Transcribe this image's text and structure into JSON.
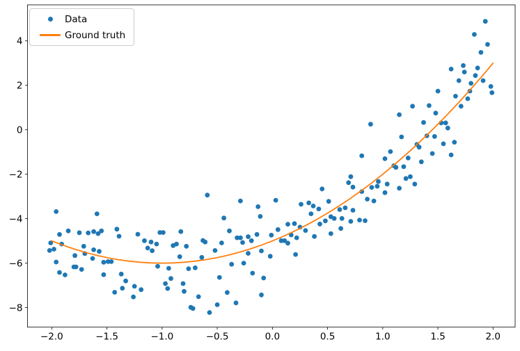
{
  "chart_data": {
    "type": "scatter",
    "title": "",
    "xlabel": "",
    "ylabel": "",
    "grid": false,
    "xlim": [
      -2.22,
      2.2
    ],
    "ylim": [
      -8.88,
      5.62
    ],
    "xticks": {
      "values": [
        -2.0,
        -1.5,
        -1.0,
        -0.5,
        0.0,
        0.5,
        1.0,
        1.5,
        2.0
      ],
      "labels": [
        "−2.0",
        "−1.5",
        "−1.0",
        "−0.5",
        "0.0",
        "0.5",
        "1.0",
        "1.5",
        "2.0"
      ]
    },
    "yticks": {
      "values": [
        -8,
        -6,
        -4,
        -2,
        0,
        2,
        4
      ],
      "labels": [
        "−8",
        "−6",
        "−4",
        "−2",
        "0",
        "2",
        "4"
      ]
    },
    "legend": {
      "position": "upper left",
      "entries": [
        {
          "label": "Data",
          "marker": "dot",
          "color": "#1f77b4"
        },
        {
          "label": "Ground truth",
          "marker": "line",
          "color": "#ff7f0e"
        }
      ]
    },
    "series": [
      {
        "name": "Data",
        "type": "scatter",
        "color": "#1f77b4",
        "marker_radius": 3.4,
        "points": [
          [
            1.93,
            4.88
          ],
          [
            1.83,
            4.29
          ],
          [
            1.95,
            3.84
          ],
          [
            1.89,
            3.48
          ],
          [
            1.73,
            2.89
          ],
          [
            1.62,
            2.73
          ],
          [
            1.74,
            2.6
          ],
          [
            1.86,
            2.78
          ],
          [
            1.84,
            2.44
          ],
          [
            1.69,
            2.21
          ],
          [
            1.91,
            2.21
          ],
          [
            1.8,
            2.09
          ],
          [
            1.98,
            1.95
          ],
          [
            1.99,
            1.67
          ],
          [
            1.79,
            1.74
          ],
          [
            1.5,
            1.74
          ],
          [
            1.66,
            1.51
          ],
          [
            1.77,
            1.4
          ],
          [
            1.27,
            1.06
          ],
          [
            1.42,
            1.09
          ],
          [
            1.71,
            1.06
          ],
          [
            1.48,
            0.75
          ],
          [
            1.15,
            0.68
          ],
          [
            1.37,
            0.33
          ],
          [
            1.53,
            0.31
          ],
          [
            1.57,
            0.31
          ],
          [
            1.59,
            0.08
          ],
          [
            1.4,
            -0.27
          ],
          [
            1.47,
            -0.3
          ],
          [
            1.17,
            -0.32
          ],
          [
            1.31,
            -0.66
          ],
          [
            1.33,
            -0.78
          ],
          [
            1.55,
            -0.63
          ],
          [
            1.65,
            -0.56
          ],
          [
            1.45,
            -1.07
          ],
          [
            1.62,
            -1.13
          ],
          [
            1.23,
            -1.27
          ],
          [
            1.35,
            -1.44
          ],
          [
            1.12,
            -1.69
          ],
          [
            1.19,
            -1.66
          ],
          [
            1.21,
            -2.19
          ],
          [
            1.25,
            -2.11
          ],
          [
            1.29,
            -2.44
          ],
          [
            1.15,
            -2.63
          ],
          [
            0.89,
            0.25
          ],
          [
            0.81,
            -1.17
          ],
          [
            1.07,
            -0.98
          ],
          [
            1.02,
            -1.3
          ],
          [
            1.1,
            -1.62
          ],
          [
            0.71,
            -2.11
          ],
          [
            0.69,
            -2.38
          ],
          [
            0.73,
            -2.58
          ],
          [
            0.81,
            -2.78
          ],
          [
            0.9,
            -2.59
          ],
          [
            0.95,
            -2.54
          ],
          [
            0.96,
            -2.33
          ],
          [
            1.04,
            -2.44
          ],
          [
            1.02,
            -2.83
          ],
          [
            0.86,
            -3.12
          ],
          [
            0.92,
            -3.2
          ],
          [
            0.45,
            -2.66
          ],
          [
            0.51,
            -3.22
          ],
          [
            0.26,
            -3.35
          ],
          [
            0.33,
            -3.29
          ],
          [
            0.37,
            -3.43
          ],
          [
            0.42,
            -3.56
          ],
          [
            0.35,
            -3.78
          ],
          [
            0.48,
            -4.1
          ],
          [
            0.53,
            -3.91
          ],
          [
            0.56,
            -3.99
          ],
          [
            0.61,
            -3.59
          ],
          [
            0.66,
            -3.51
          ],
          [
            0.73,
            -3.62
          ],
          [
            0.63,
            -3.99
          ],
          [
            0.71,
            -4.12
          ],
          [
            0.03,
            -3.17
          ],
          [
            0.05,
            -4.49
          ],
          [
            0.14,
            -4.25
          ],
          [
            0.2,
            -4.22
          ],
          [
            0.25,
            -4.38
          ],
          [
            0.3,
            -4.53
          ],
          [
            0.08,
            -4.99
          ],
          [
            0.11,
            -4.99
          ],
          [
            0.14,
            -5.1
          ],
          [
            0.17,
            -4.73
          ],
          [
            0.22,
            -4.86
          ],
          [
            0.43,
            -4.24
          ],
          [
            0.53,
            -4.67
          ],
          [
            0.38,
            -4.8
          ],
          [
            0.62,
            -4.44
          ],
          [
            0.21,
            -5.61
          ],
          [
            0.79,
            -4.06
          ],
          [
            0.84,
            -4.09
          ],
          [
            -1.02,
            -4.62
          ],
          [
            -0.99,
            -4.62
          ],
          [
            -0.83,
            -4.58
          ],
          [
            -1.1,
            -5.05
          ],
          [
            -1.05,
            -5.14
          ],
          [
            -0.9,
            -5.21
          ],
          [
            -0.87,
            -5.14
          ],
          [
            -0.78,
            -5.24
          ],
          [
            -1.09,
            -5.44
          ],
          [
            -0.84,
            -5.71
          ],
          [
            -1.04,
            -6.14
          ],
          [
            -0.94,
            -6.23
          ],
          [
            -0.63,
            -4.98
          ],
          [
            -0.61,
            -5.05
          ],
          [
            -0.64,
            -5.74
          ],
          [
            -0.76,
            -6.25
          ],
          [
            -0.7,
            -6.21
          ],
          [
            -0.92,
            -6.69
          ],
          [
            -0.97,
            -6.92
          ],
          [
            -0.95,
            -7.14
          ],
          [
            -0.81,
            -6.92
          ],
          [
            -0.8,
            -7.27
          ],
          [
            -0.67,
            -7.51
          ],
          [
            -0.74,
            -7.99
          ],
          [
            -0.72,
            -8.04
          ],
          [
            -0.57,
            -8.22
          ],
          [
            -0.5,
            -7.87
          ],
          [
            -0.52,
            -5.43
          ],
          [
            -0.46,
            -5.09
          ],
          [
            -0.39,
            -4.55
          ],
          [
            -0.32,
            -4.86
          ],
          [
            -0.29,
            -4.86
          ],
          [
            -0.27,
            -5.07
          ],
          [
            -0.22,
            -4.81
          ],
          [
            -0.19,
            -4.99
          ],
          [
            -0.14,
            -4.71
          ],
          [
            -0.01,
            -4.74
          ],
          [
            -0.37,
            -6.05
          ],
          [
            -0.26,
            -6.0
          ],
          [
            -0.22,
            -5.56
          ],
          [
            -0.1,
            -5.45
          ],
          [
            -0.02,
            -5.69
          ],
          [
            -0.18,
            -6.45
          ],
          [
            -0.48,
            -6.64
          ],
          [
            -0.41,
            -7.32
          ],
          [
            -0.33,
            -7.79
          ],
          [
            -0.1,
            -7.43
          ],
          [
            -0.08,
            -6.67
          ],
          [
            -1.85,
            -4.55
          ],
          [
            -1.93,
            -4.71
          ],
          [
            -1.75,
            -4.63
          ],
          [
            -1.67,
            -4.64
          ],
          [
            -1.62,
            -4.58
          ],
          [
            -1.58,
            -4.67
          ],
          [
            -1.55,
            -4.55
          ],
          [
            -1.41,
            -4.47
          ],
          [
            -1.39,
            -4.79
          ],
          [
            -1.22,
            -4.7
          ],
          [
            -1.16,
            -4.99
          ],
          [
            -1.13,
            -5.32
          ],
          [
            -2.01,
            -5.09
          ],
          [
            -1.98,
            -5.37
          ],
          [
            -2.02,
            -5.43
          ],
          [
            -1.91,
            -5.14
          ],
          [
            -1.71,
            -5.24
          ],
          [
            -1.62,
            -5.4
          ],
          [
            -1.57,
            -5.47
          ],
          [
            -1.7,
            -5.57
          ],
          [
            -1.79,
            -5.66
          ],
          [
            -1.53,
            -5.96
          ],
          [
            -1.49,
            -5.93
          ],
          [
            -1.46,
            -5.93
          ],
          [
            -1.63,
            -5.79
          ],
          [
            -1.96,
            -5.95
          ],
          [
            -1.8,
            -6.17
          ],
          [
            -1.78,
            -6.17
          ],
          [
            -1.73,
            -6.28
          ],
          [
            -1.88,
            -6.53
          ],
          [
            -1.53,
            -6.52
          ],
          [
            -1.37,
            -6.49
          ],
          [
            -1.33,
            -6.8
          ],
          [
            -1.43,
            -7.31
          ],
          [
            -1.36,
            -7.13
          ],
          [
            -1.26,
            -7.52
          ],
          [
            -1.25,
            -7.04
          ],
          [
            -1.19,
            -7.19
          ],
          [
            -1.93,
            -6.42
          ],
          [
            -1.96,
            -3.68
          ],
          [
            -1.59,
            -3.78
          ],
          [
            -0.59,
            -2.94
          ],
          [
            -0.29,
            -3.2
          ],
          [
            -0.13,
            -3.46
          ],
          [
            -0.44,
            -3.97
          ],
          [
            -0.11,
            -3.9
          ]
        ]
      },
      {
        "name": "Ground truth",
        "type": "line",
        "color": "#ff7f0e",
        "line_width": 1.8,
        "formula": "y = x^2 + 2x - 5",
        "x_range": [
          -2,
          2
        ],
        "points": [
          [
            -2.0,
            -5.0
          ],
          [
            -1.9,
            -5.19
          ],
          [
            -1.8,
            -5.36
          ],
          [
            -1.7,
            -5.51
          ],
          [
            -1.6,
            -5.64
          ],
          [
            -1.5,
            -5.75
          ],
          [
            -1.4,
            -5.84
          ],
          [
            -1.3,
            -5.91
          ],
          [
            -1.2,
            -5.96
          ],
          [
            -1.1,
            -5.99
          ],
          [
            -1.0,
            -6.0
          ],
          [
            -0.9,
            -5.99
          ],
          [
            -0.8,
            -5.96
          ],
          [
            -0.7,
            -5.91
          ],
          [
            -0.6,
            -5.84
          ],
          [
            -0.5,
            -5.75
          ],
          [
            -0.4,
            -5.64
          ],
          [
            -0.3,
            -5.51
          ],
          [
            -0.2,
            -5.36
          ],
          [
            -0.1,
            -5.19
          ],
          [
            0.0,
            -5.0
          ],
          [
            0.1,
            -4.79
          ],
          [
            0.2,
            -4.56
          ],
          [
            0.3,
            -4.31
          ],
          [
            0.4,
            -4.04
          ],
          [
            0.5,
            -3.75
          ],
          [
            0.6,
            -3.44
          ],
          [
            0.7,
            -3.11
          ],
          [
            0.8,
            -2.76
          ],
          [
            0.9,
            -2.39
          ],
          [
            1.0,
            -2.0
          ],
          [
            1.1,
            -1.59
          ],
          [
            1.2,
            -1.16
          ],
          [
            1.3,
            -0.71
          ],
          [
            1.4,
            -0.24
          ],
          [
            1.5,
            0.25
          ],
          [
            1.6,
            0.76
          ],
          [
            1.7,
            1.29
          ],
          [
            1.8,
            1.84
          ],
          [
            1.9,
            2.41
          ],
          [
            2.0,
            3.0
          ]
        ]
      }
    ]
  }
}
